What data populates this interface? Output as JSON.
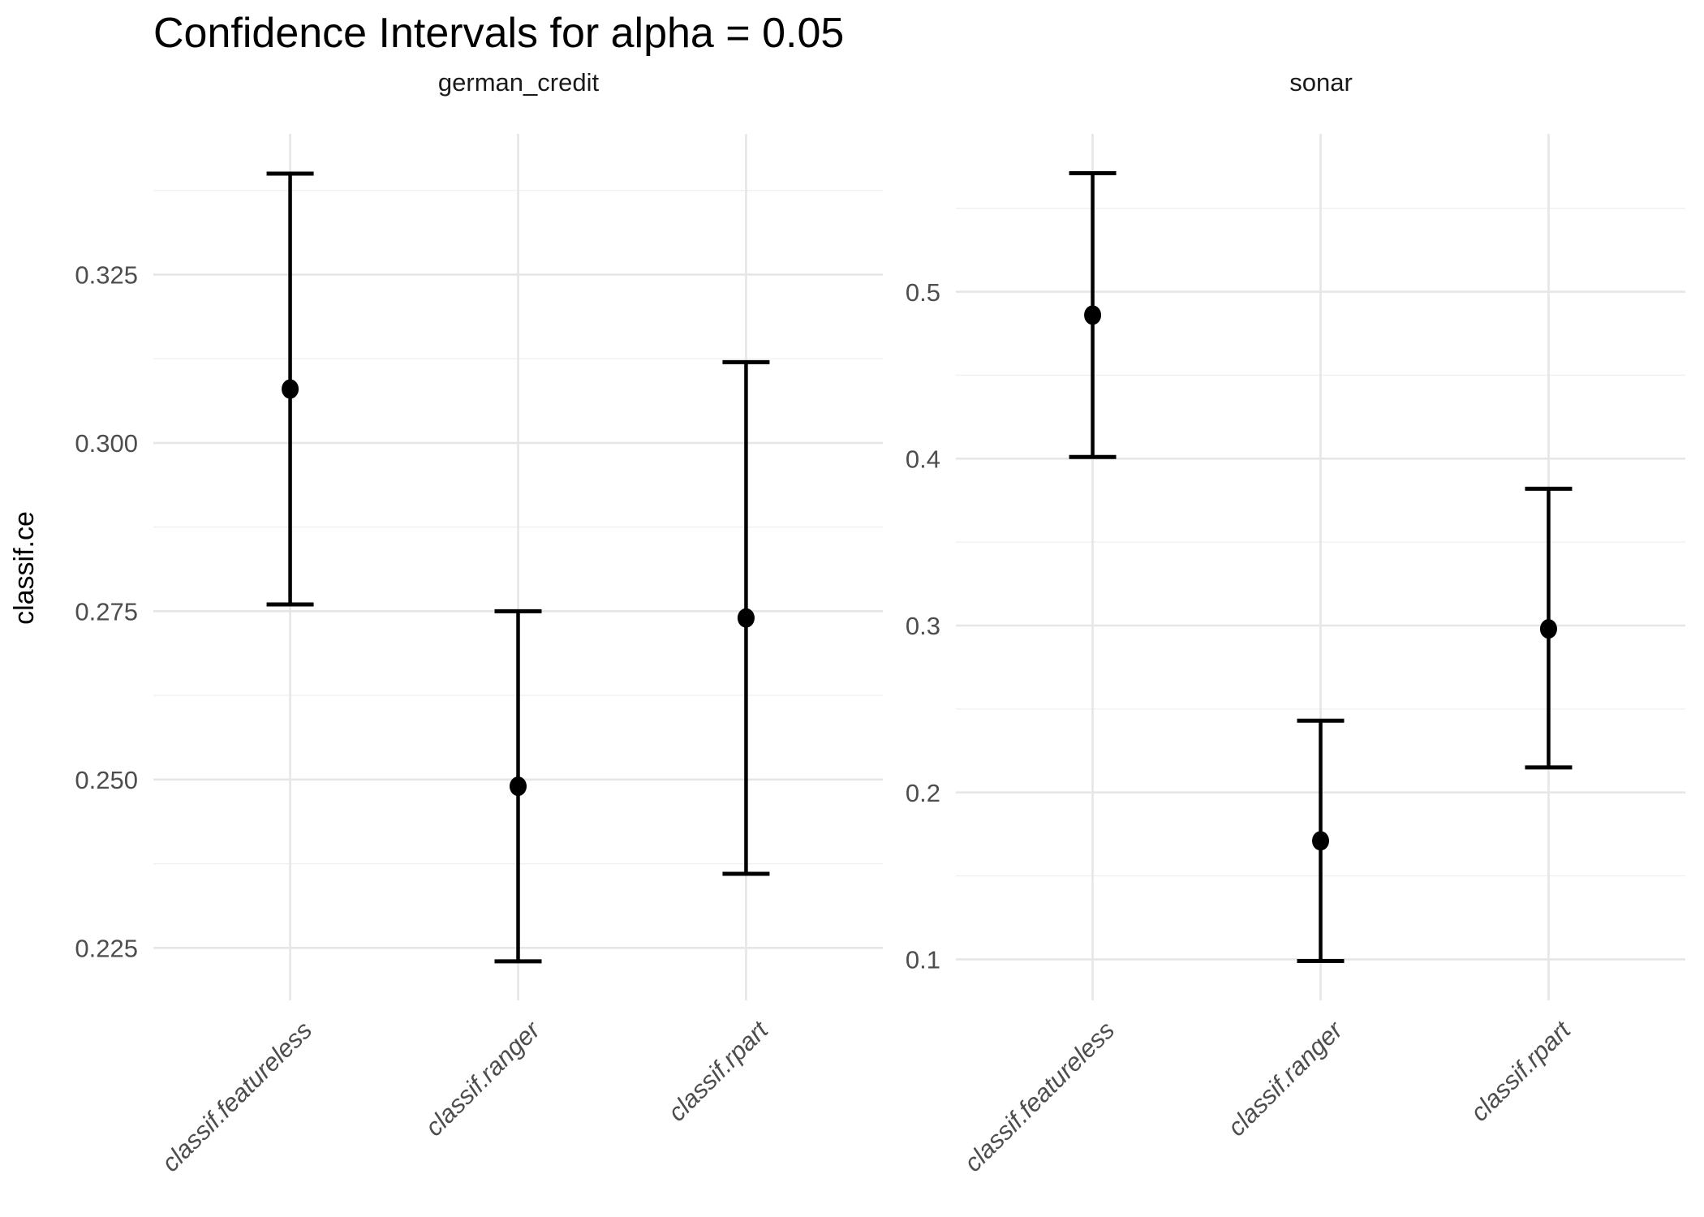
{
  "title": "Confidence Intervals for alpha = 0.05",
  "y_axis_title": "classif.ce",
  "chart_data": {
    "type": "errorbar",
    "title": "Confidence Intervals for alpha = 0.05",
    "ylabel": "classif.ce",
    "xlabel": "",
    "legend": "none",
    "grid": "on",
    "categories": [
      "classif.featureless",
      "classif.ranger",
      "classif.rpart"
    ],
    "facets": [
      {
        "label": "german_credit",
        "ylim": [
          0.2172,
          0.3459
        ],
        "y_ticks": [
          {
            "value": 0.225,
            "label": "0.225"
          },
          {
            "value": 0.25,
            "label": "0.250"
          },
          {
            "value": 0.275,
            "label": "0.275"
          },
          {
            "value": 0.3,
            "label": "0.300"
          },
          {
            "value": 0.325,
            "label": "0.325"
          }
        ],
        "y_minor": [
          0.2375,
          0.2625,
          0.2875,
          0.3125,
          0.3375
        ],
        "series": [
          {
            "learner": "classif.featureless",
            "estimate": 0.308,
            "lower": 0.276,
            "upper": 0.34
          },
          {
            "learner": "classif.ranger",
            "estimate": 0.249,
            "lower": 0.223,
            "upper": 0.275
          },
          {
            "learner": "classif.rpart",
            "estimate": 0.274,
            "lower": 0.236,
            "upper": 0.312
          }
        ]
      },
      {
        "label": "sonar",
        "ylim": [
          0.0754,
          0.5946
        ],
        "y_ticks": [
          {
            "value": 0.1,
            "label": "0.1"
          },
          {
            "value": 0.2,
            "label": "0.2"
          },
          {
            "value": 0.3,
            "label": "0.3"
          },
          {
            "value": 0.4,
            "label": "0.4"
          },
          {
            "value": 0.5,
            "label": "0.5"
          }
        ],
        "y_minor": [
          0.15,
          0.25,
          0.35,
          0.45,
          0.55
        ],
        "series": [
          {
            "learner": "classif.featureless",
            "estimate": 0.486,
            "lower": 0.401,
            "upper": 0.571
          },
          {
            "learner": "classif.ranger",
            "estimate": 0.171,
            "lower": 0.099,
            "upper": 0.243
          },
          {
            "learner": "classif.rpart",
            "estimate": 0.298,
            "lower": 0.215,
            "upper": 0.382
          }
        ]
      }
    ]
  },
  "colors": {
    "background": "#ffffff",
    "grid_major": "#e6e6e6",
    "grid_minor": "#f0f0f0",
    "errorbar": "#000000",
    "point": "#000000",
    "tick_text": "#4d4d4d",
    "strip_text": "#1a1a1a",
    "title_text": "#000000"
  }
}
